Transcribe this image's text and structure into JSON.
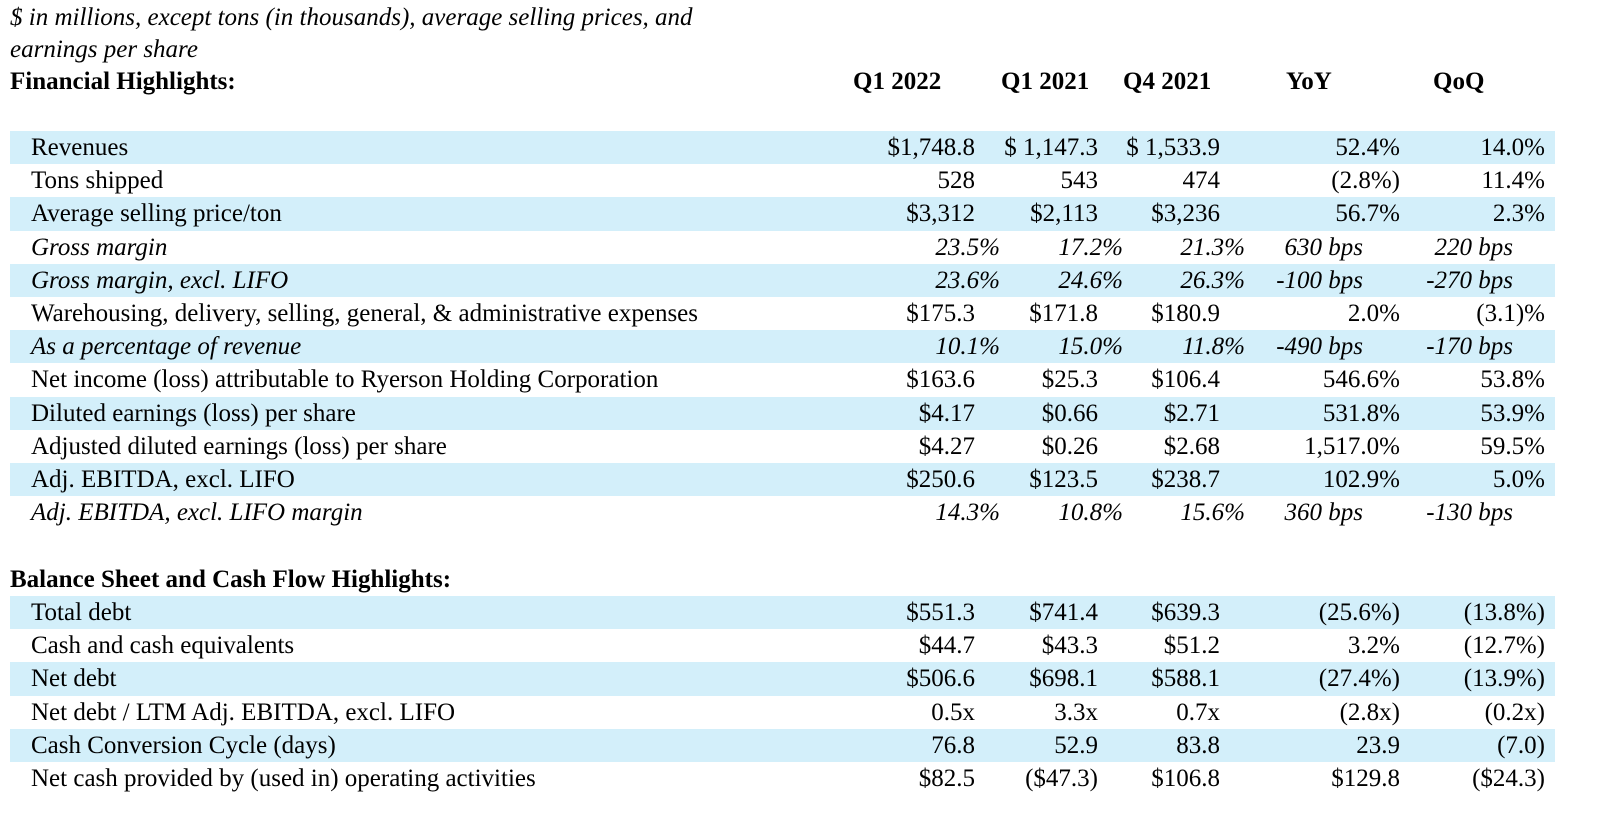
{
  "note": {
    "line1": "$ in millions, except tons (in thousands), average selling prices, and",
    "line2": "earnings per share"
  },
  "financial": {
    "heading": "Financial Highlights:",
    "columns": [
      "Q1 2022",
      "Q1 2021",
      "Q4 2021",
      "YoY",
      "QoQ"
    ],
    "rows": [
      {
        "label": "Revenues",
        "values": [
          "$1,748.8",
          "$ 1,147.3",
          "$ 1,533.9",
          "52.4%",
          "14.0%"
        ]
      },
      {
        "label": "Tons shipped",
        "values": [
          "528",
          "543",
          "474",
          "(2.8%)",
          "11.4%"
        ]
      },
      {
        "label": "Average selling price/ton",
        "values": [
          "$3,312",
          "$2,113",
          "$3,236",
          "56.7%",
          "2.3%"
        ]
      },
      {
        "label": "Gross margin",
        "values": [
          "23.5%",
          "17.2%",
          "21.3%",
          "630 bps",
          "220 bps"
        ]
      },
      {
        "label": "Gross margin, excl. LIFO",
        "values": [
          "23.6%",
          "24.6%",
          "26.3%",
          "-100 bps",
          "-270 bps"
        ]
      },
      {
        "label": "Warehousing, delivery, selling, general, & administrative expenses",
        "values": [
          "$175.3",
          "$171.8",
          "$180.9",
          "2.0%",
          "(3.1)%"
        ]
      },
      {
        "label": "As a percentage of revenue",
        "values": [
          "10.1%",
          "15.0%",
          "11.8%",
          "-490 bps",
          "-170 bps"
        ]
      },
      {
        "label": "Net income (loss) attributable to Ryerson Holding Corporation",
        "values": [
          "$163.6",
          "$25.3",
          "$106.4",
          "546.6%",
          "53.8%"
        ]
      },
      {
        "label": "Diluted earnings (loss) per share",
        "values": [
          "$4.17",
          "$0.66",
          "$2.71",
          "531.8%",
          "53.9%"
        ]
      },
      {
        "label": "Adjusted diluted earnings (loss) per share",
        "values": [
          "$4.27",
          "$0.26",
          "$2.68",
          "1,517.0%",
          "59.5%"
        ]
      },
      {
        "label": "Adj. EBITDA, excl. LIFO",
        "values": [
          "$250.6",
          "$123.5",
          "$238.7",
          "102.9%",
          "5.0%"
        ]
      },
      {
        "label": "Adj. EBITDA, excl. LIFO margin",
        "values": [
          "14.3%",
          "10.8%",
          "15.6%",
          "360 bps",
          "-130 bps"
        ]
      }
    ]
  },
  "balance": {
    "heading": "Balance Sheet and Cash Flow Highlights:",
    "rows": [
      {
        "label": "Total debt",
        "values": [
          "$551.3",
          "$741.4",
          "$639.3",
          "(25.6%)",
          "(13.8%)"
        ]
      },
      {
        "label": "Cash and cash equivalents",
        "values": [
          "$44.7",
          "$43.3",
          "$51.2",
          "3.2%",
          "(12.7%)"
        ]
      },
      {
        "label": "Net debt",
        "values": [
          "$506.6",
          "$698.1",
          "$588.1",
          "(27.4%)",
          "(13.9%)"
        ]
      },
      {
        "label": "Net debt / LTM Adj. EBITDA, excl. LIFO",
        "values": [
          "0.5x",
          "3.3x",
          "0.7x",
          "(2.8x)",
          "(0.2x)"
        ]
      },
      {
        "label": "Cash Conversion Cycle (days)",
        "values": [
          "76.8",
          "52.9",
          "83.8",
          "23.9",
          "(7.0)"
        ]
      },
      {
        "label": "Net cash provided by (used in) operating activities",
        "values": [
          "$82.5",
          "($47.3)",
          "$106.8",
          "$129.8",
          "($24.3)"
        ]
      }
    ]
  },
  "colors": {
    "row_shade": "#d3effa",
    "text": "#000000"
  }
}
